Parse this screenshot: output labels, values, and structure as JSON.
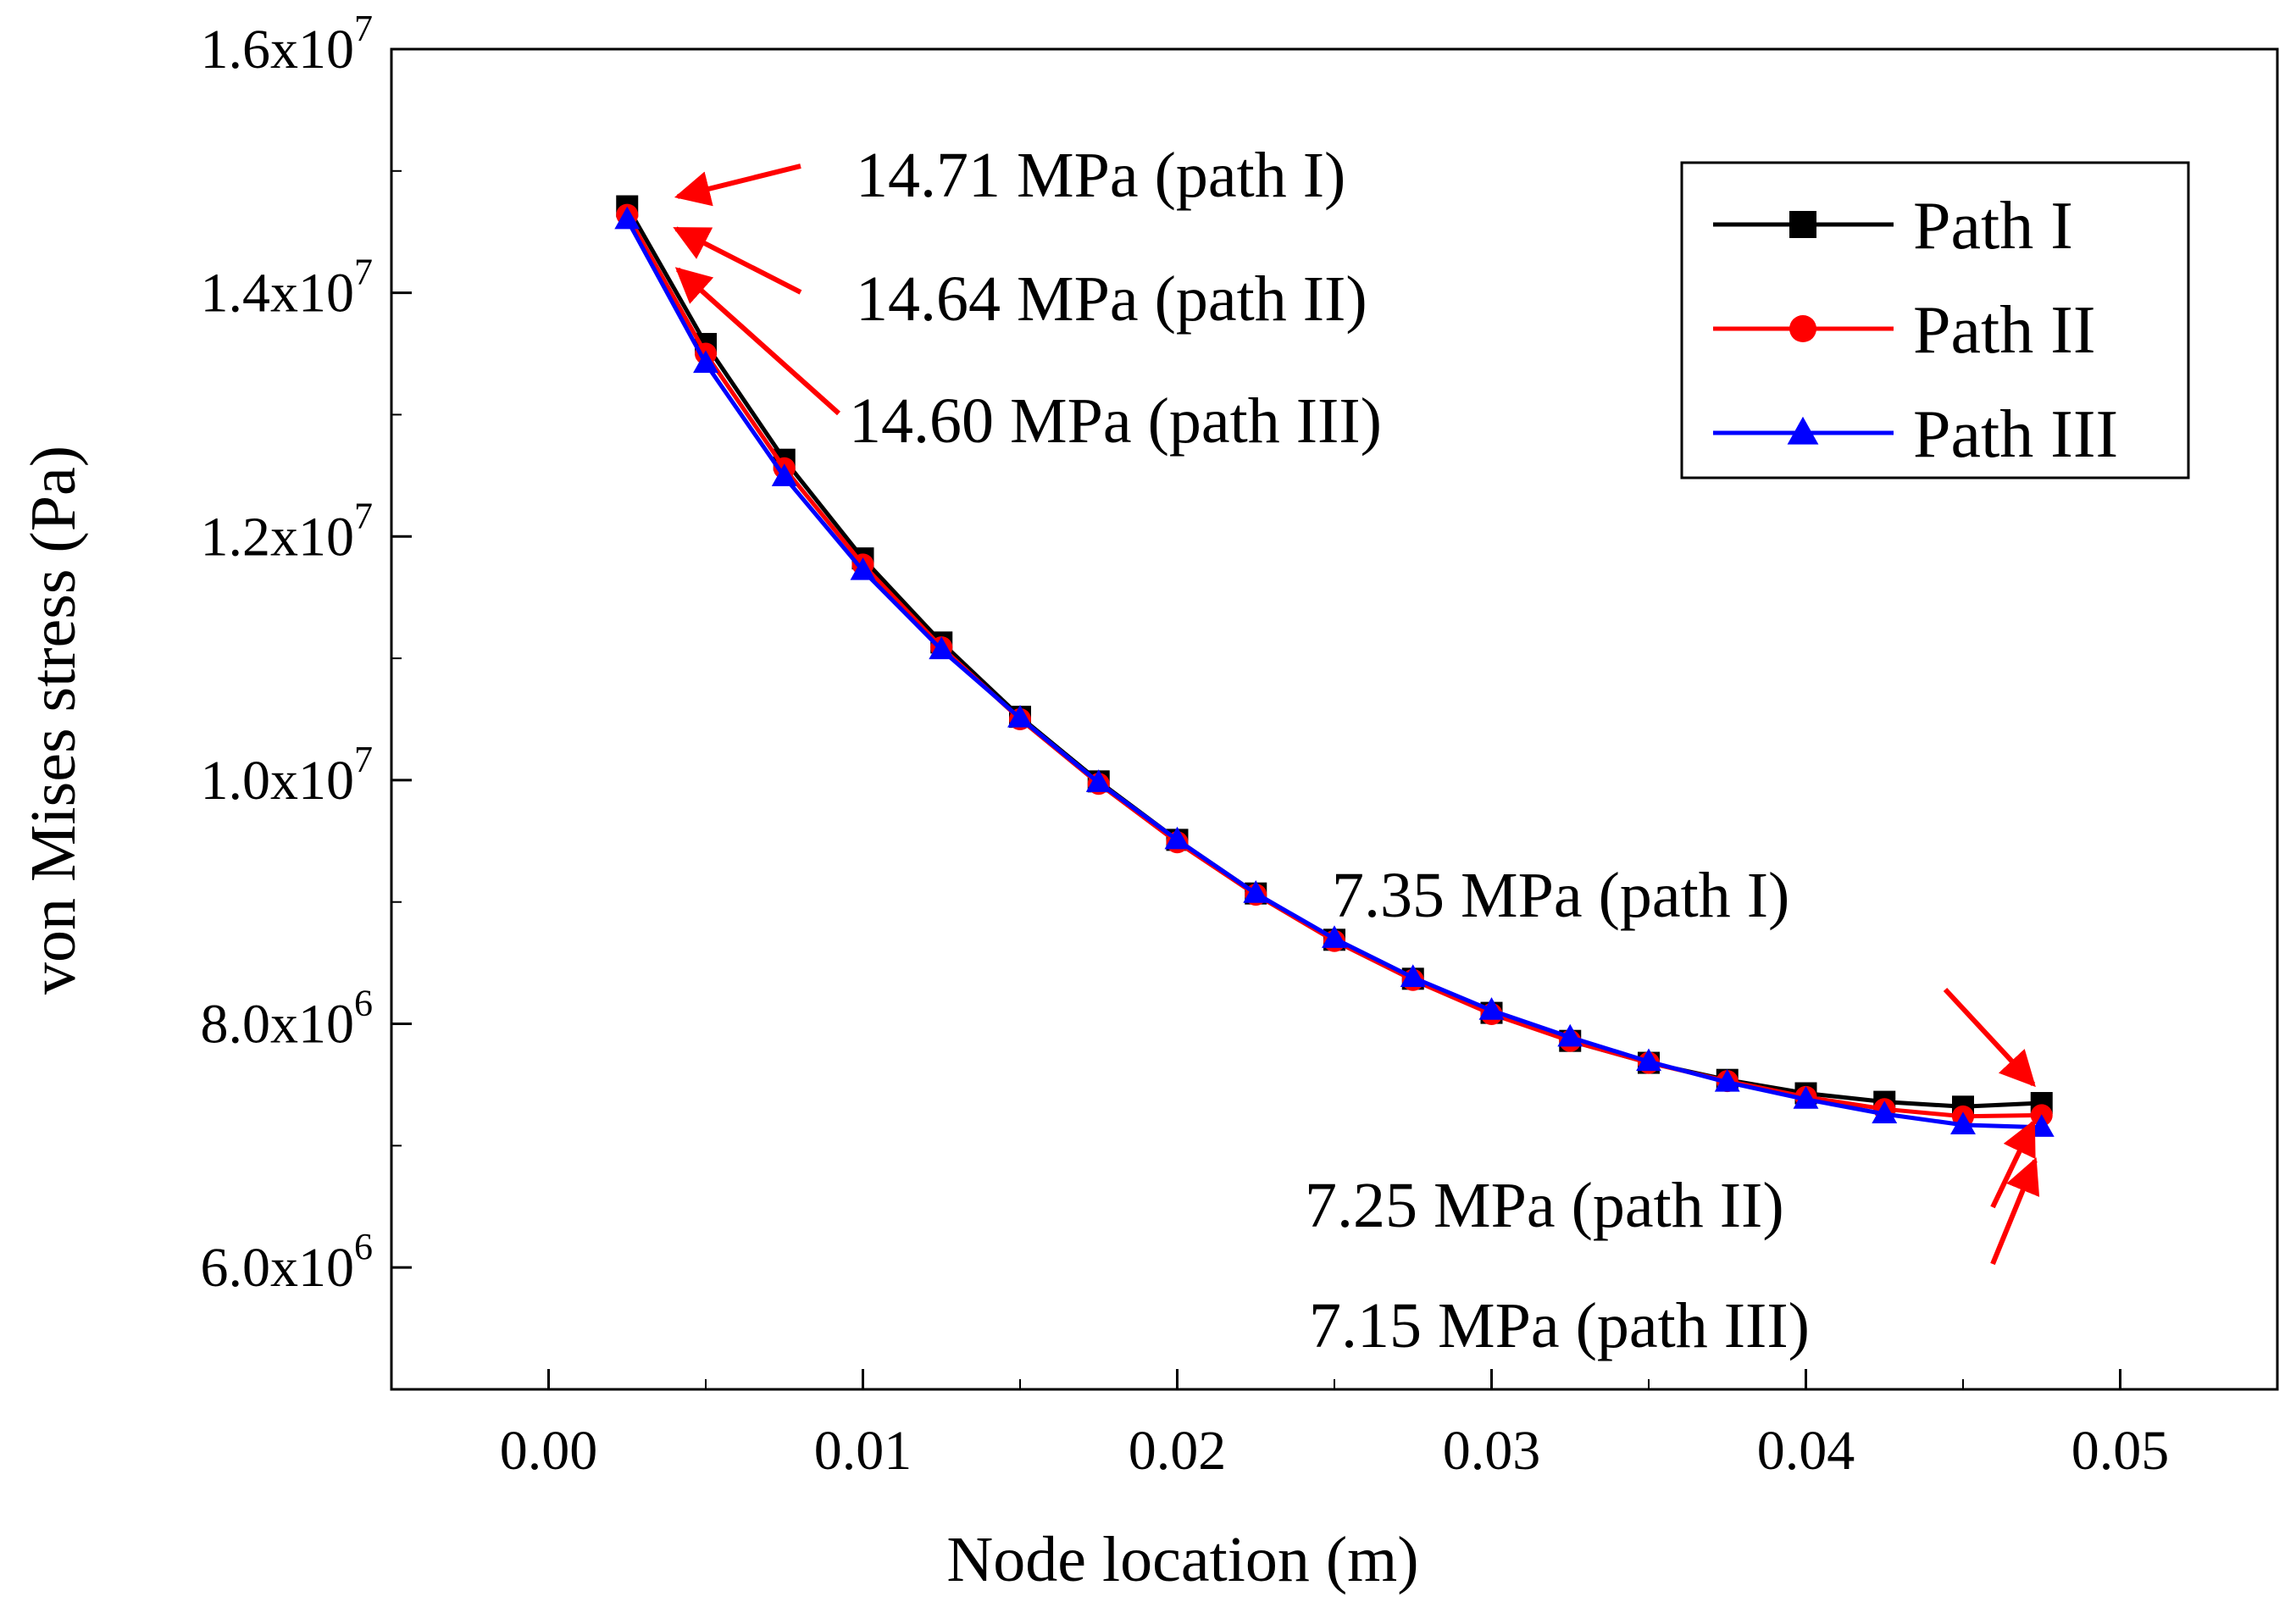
{
  "chart_data": {
    "type": "line",
    "title": "",
    "xlabel": "Node location (m)",
    "ylabel": "von Mises stress (Pa)",
    "xlim": [
      -0.005,
      0.055
    ],
    "ylim": [
      5000000,
      16000000
    ],
    "grid": false,
    "legend_position": "top-right",
    "x_ticks": [
      {
        "value": 0.0,
        "label": "0.00"
      },
      {
        "value": 0.01,
        "label": "0.01"
      },
      {
        "value": 0.02,
        "label": "0.02"
      },
      {
        "value": 0.03,
        "label": "0.03"
      },
      {
        "value": 0.04,
        "label": "0.04"
      },
      {
        "value": 0.05,
        "label": "0.05"
      }
    ],
    "y_ticks": [
      {
        "value": 6000000,
        "mantissa": "6.0x10",
        "exp": "6"
      },
      {
        "value": 8000000,
        "mantissa": "8.0x10",
        "exp": "6"
      },
      {
        "value": 10000000,
        "mantissa": "1.0x10",
        "exp": "7"
      },
      {
        "value": 12000000,
        "mantissa": "1.2x10",
        "exp": "7"
      },
      {
        "value": 14000000,
        "mantissa": "1.4x10",
        "exp": "7"
      },
      {
        "value": 16000000,
        "mantissa": "1.6x10",
        "exp": "7"
      }
    ],
    "x": [
      0.0025,
      0.005,
      0.0075,
      0.01,
      0.0125,
      0.015,
      0.0175,
      0.02,
      0.0225,
      0.025,
      0.0275,
      0.03,
      0.0325,
      0.035,
      0.0375,
      0.04,
      0.0425,
      0.045,
      0.0475
    ],
    "series": [
      {
        "name": "Path I",
        "color": "#000000",
        "marker": "square",
        "values": [
          14710000,
          13580000,
          12630000,
          11820000,
          11130000,
          10520000,
          9990000,
          9510000,
          9070000,
          8690000,
          8370000,
          8090000,
          7860000,
          7680000,
          7540000,
          7430000,
          7360000,
          7320000,
          7350000
        ]
      },
      {
        "name": "Path II",
        "color": "#ff0000",
        "marker": "circle",
        "values": [
          14640000,
          13500000,
          12560000,
          11770000,
          11090000,
          10500000,
          9970000,
          9490000,
          9060000,
          8680000,
          8360000,
          8080000,
          7860000,
          7680000,
          7530000,
          7400000,
          7300000,
          7240000,
          7250000
        ]
      },
      {
        "name": "Path III",
        "color": "#0000ff",
        "marker": "triangle",
        "values": [
          14600000,
          13420000,
          12490000,
          11720000,
          11070000,
          10510000,
          9980000,
          9510000,
          9070000,
          8700000,
          8380000,
          8110000,
          7890000,
          7690000,
          7520000,
          7380000,
          7260000,
          7170000,
          7150000
        ]
      }
    ],
    "annotations": [
      {
        "text": "14.71 MPa (path I)"
      },
      {
        "text": "14.64 MPa (path II)"
      },
      {
        "text": "14.60 MPa (path III)"
      },
      {
        "text": "7.35 MPa (path I)"
      },
      {
        "text": "7.25 MPa (path II)"
      },
      {
        "text": "7.15 MPa (path III)"
      }
    ],
    "annotation_color": "#ff0000"
  }
}
